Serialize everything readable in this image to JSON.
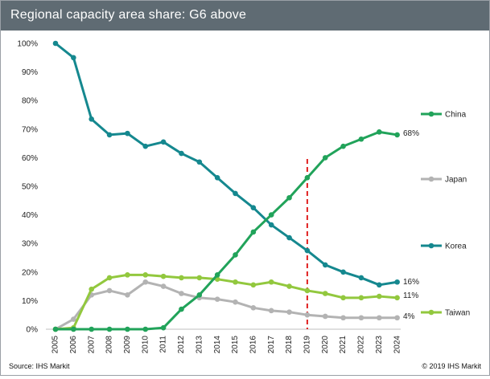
{
  "header": {
    "title": "Regional capacity area share: G6 above"
  },
  "footer": {
    "source": "Source: IHS Markit",
    "copyright": "© 2019 IHS Markit"
  },
  "colors": {
    "china": "#21a35a",
    "japan": "#b3b3b3",
    "korea": "#15888f",
    "taiwan": "#92c83e",
    "forecast_line": "#e02020",
    "title_bar": "#5f6b73"
  },
  "chart_data": {
    "type": "line",
    "title": "Regional capacity area share: G6 above",
    "xlabel": "",
    "ylabel": "",
    "ylim": [
      0,
      100
    ],
    "y_ticks": [
      "0%",
      "10%",
      "20%",
      "30%",
      "40%",
      "50%",
      "60%",
      "70%",
      "80%",
      "90%",
      "100%"
    ],
    "categories": [
      "2005",
      "2006",
      "2007",
      "2008",
      "2009",
      "2010",
      "2011",
      "2012",
      "2013",
      "2014",
      "2015",
      "2016",
      "2017",
      "2018",
      "2019",
      "2020",
      "2021",
      "2022",
      "2023",
      "2024"
    ],
    "forecast_marker": "2019",
    "series": [
      {
        "name": "China",
        "key": "china",
        "end_label": "68%",
        "values": [
          0,
          0,
          0,
          0,
          0,
          0,
          0.5,
          7,
          12,
          19,
          26,
          34,
          40,
          46,
          53,
          60,
          64,
          66.5,
          69,
          68
        ]
      },
      {
        "name": "Japan",
        "key": "japan",
        "end_label": "4%",
        "values": [
          0,
          3.5,
          12,
          13.5,
          12,
          16.5,
          15,
          12.5,
          11,
          10.5,
          9.5,
          7.5,
          6.5,
          6,
          5,
          4.5,
          4,
          4,
          4,
          4
        ]
      },
      {
        "name": "Korea",
        "key": "korea",
        "end_label": "16%",
        "values": [
          100,
          95,
          73.5,
          68,
          68.5,
          64,
          65.5,
          61.5,
          58.5,
          53,
          47.5,
          42.5,
          36.5,
          32,
          27.5,
          22.5,
          20,
          18,
          15.5,
          16.5
        ]
      },
      {
        "name": "Taiwan",
        "key": "taiwan",
        "end_label": "11%",
        "values": [
          0,
          0.5,
          14,
          18,
          19,
          19,
          18.5,
          18,
          18,
          17.5,
          16.5,
          15.5,
          16.5,
          15,
          13.5,
          12.5,
          11,
          11,
          11.5,
          11
        ]
      }
    ]
  }
}
